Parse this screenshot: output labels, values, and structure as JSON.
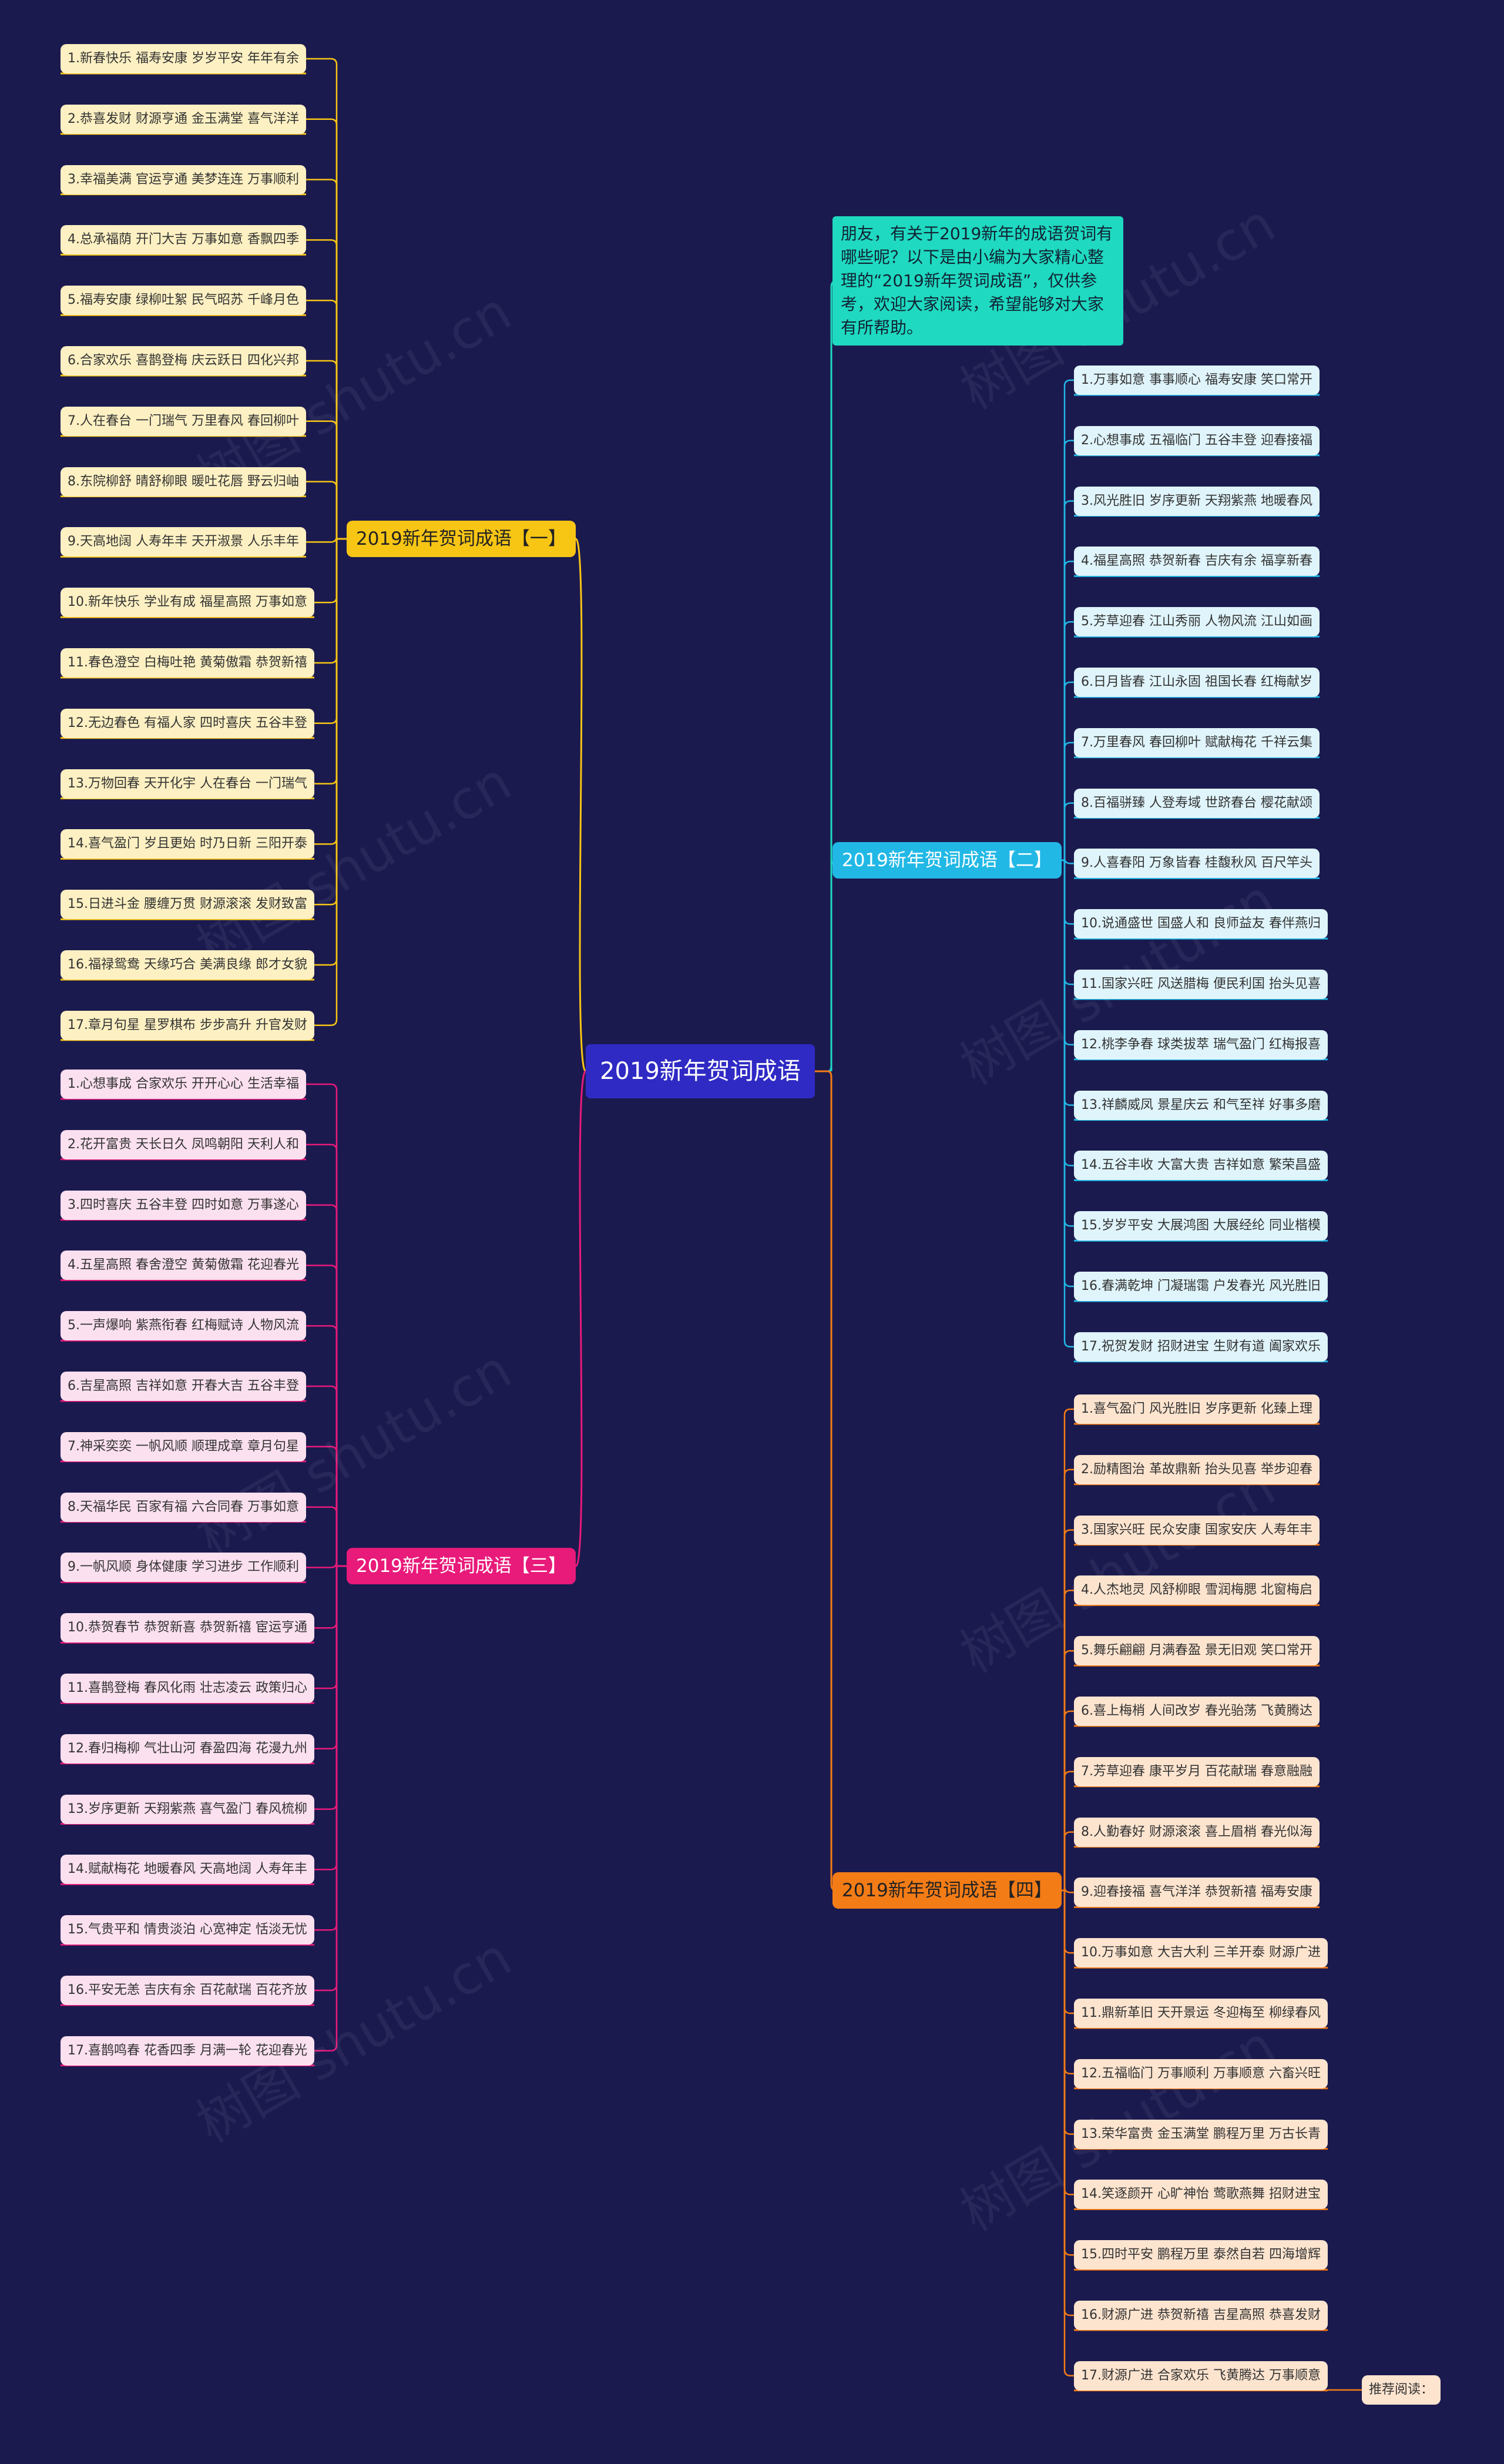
{
  "root": "2019新年贺词成语",
  "intro": "朋友，有关于2019新年的成语贺词有哪些呢？以下是由小编为大家精心整理的“2019新年贺词成语”，仅供参考，欢迎大家阅读，希望能够对大家有所帮助。",
  "recommend": "推荐阅读：",
  "watermark": "树图 shutu.cn",
  "colors": {
    "b0": "#f7c514",
    "b1": "#22b8e6",
    "b2": "#e81a7a",
    "b3": "#f47c16",
    "intro": "#1fd9c0"
  },
  "branches": [
    {
      "label": "2019新年贺词成语【一】",
      "items": [
        "1.新春快乐 福寿安康 岁岁平安 年年有余",
        "2.恭喜发财 财源亨通 金玉满堂 喜气洋洋",
        "3.幸福美满 官运亨通 美梦连连 万事顺利",
        "4.总承福荫 开门大吉 万事如意 香飘四季",
        "5.福寿安康 绿柳吐絮 民气昭苏 千峰月色",
        "6.合家欢乐 喜鹊登梅 庆云跃日 四化兴邦",
        "7.人在春台 一门瑞气 万里春风 春回柳叶",
        "8.东院柳舒 晴舒柳眼 暖吐花唇 野云归岫",
        "9.天高地阔 人寿年丰 天开淑景 人乐丰年",
        "10.新年快乐 学业有成 福星高照 万事如意",
        "11.春色澄空 白梅吐艳 黄菊傲霜 恭贺新禧",
        "12.无边春色 有福人家 四时喜庆 五谷丰登",
        "13.万物回春 天开化宇 人在春台 一门瑞气",
        "14.喜气盈门 岁且更始 时乃日新 三阳开泰",
        "15.日进斗金 腰缠万贯 财源滚滚 发财致富",
        "16.福禄鸳鸯 天缘巧合 美满良缘 郎才女貌",
        "17.章月句星 星罗棋布 步步高升 升官发财"
      ]
    },
    {
      "label": "2019新年贺词成语【二】",
      "items": [
        "1.万事如意 事事顺心 福寿安康 笑口常开",
        "2.心想事成 五福临门 五谷丰登 迎春接福",
        "3.风光胜旧 岁序更新 天翔紫燕 地暖春风",
        "4.福星高照 恭贺新春 吉庆有余 福享新春",
        "5.芳草迎春 江山秀丽 人物风流 江山如画",
        "6.日月皆春 江山永固 祖国长春 红梅献岁",
        "7.万里春风 春回柳叶 赋献梅花 千祥云集",
        "8.百福骈臻 人登寿域 世跻春台 樱花献颂",
        "9.人喜春阳 万象皆春 桂馥秋风 百尺竿头",
        "10.说通盛世 国盛人和 良师益友 春伴燕归",
        "11.国家兴旺 风送腊梅 便民利国 抬头见喜",
        "12.桃李争春 球类拔萃 瑞气盈门 红梅报喜",
        "13.祥麟威凤 景星庆云 和气至祥 好事多磨",
        "14.五谷丰收 大富大贵 吉祥如意 繁荣昌盛",
        "15.岁岁平安 大展鸿图 大展经纶 同业楷模",
        "16.春满乾坤 门凝瑞霭 户发春光 风光胜旧",
        "17.祝贺发财 招财进宝 生财有道 阖家欢乐"
      ]
    },
    {
      "label": "2019新年贺词成语【三】",
      "items": [
        "1.心想事成 合家欢乐 开开心心 生活幸福",
        "2.花开富贵 天长日久 凤鸣朝阳 天利人和",
        "3.四时喜庆 五谷丰登 四时如意 万事遂心",
        "4.五星高照 春舍澄空 黄菊傲霜 花迎春光",
        "5.一声爆响 紫燕衔春 红梅赋诗 人物风流",
        "6.吉星高照 吉祥如意 开春大吉 五谷丰登",
        "7.神采奕奕 一帆风顺 顺理成章 章月句星",
        "8.天福华民 百家有福 六合同春 万事如意",
        "9.一帆风顺 身体健康 学习进步 工作顺利",
        "10.恭贺春节 恭贺新喜 恭贺新禧 宦运亨通",
        "11.喜鹊登梅 春风化雨 壮志凌云 政策归心",
        "12.春归梅柳 气壮山河 春盈四海 花漫九州",
        "13.岁序更新 天翔紫燕 喜气盈门 春风梳柳",
        "14.赋献梅花 地暖春风 天高地阔 人寿年丰",
        "15.气贵平和 情贵淡泊 心宽神定 恬淡无忧",
        "16.平安无恙 吉庆有余 百花献瑞 百花齐放",
        "17.喜鹊鸣春 花香四季 月满一轮 花迎春光"
      ]
    },
    {
      "label": "2019新年贺词成语【四】",
      "items": [
        "1.喜气盈门 风光胜旧 岁序更新 化臻上理",
        "2.励精图治 革故鼎新 抬头见喜 举步迎春",
        "3.国家兴旺 民众安康 国家安庆 人寿年丰",
        "4.人杰地灵 风舒柳眼 雪润梅腮 北窗梅启",
        "5.舞乐翩翩 月满春盈 景无旧观 笑口常开",
        "6.喜上梅梢 人间改岁 春光骀荡 飞黄腾达",
        "7.芳草迎春 康平岁月 百花献瑞 春意融融",
        "8.人勤春好 财源滚滚 喜上眉梢 春光似海",
        "9.迎春接福 喜气洋洋 恭贺新禧 福寿安康",
        "10.万事如意 大吉大利 三羊开泰 财源广进",
        "11.鼎新革旧 天开景运 冬迎梅至 柳绿春风",
        "12.五福临门 万事顺利 万事顺意 六畜兴旺",
        "13.荣华富贵 金玉满堂 鹏程万里 万古长青",
        "14.笑逐颜开 心旷神怡 莺歌燕舞 招财进宝",
        "15.四时平安 鹏程万里 泰然自若 四海增辉",
        "16.财源广进 恭贺新禧 吉星高照 恭喜发财",
        "17.财源广进 合家欢乐 飞黄腾达 万事顺意"
      ]
    }
  ]
}
